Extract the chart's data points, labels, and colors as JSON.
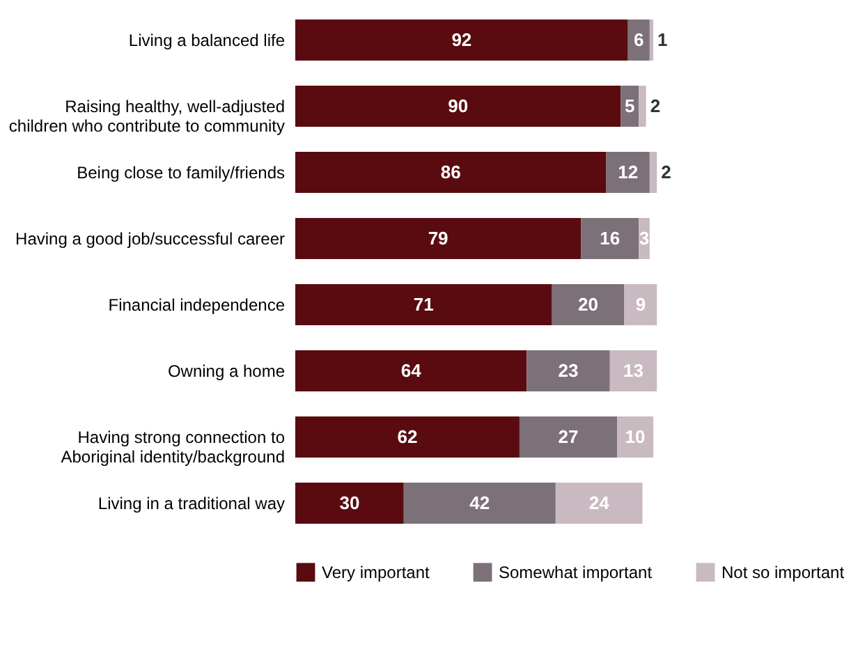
{
  "chart_data": {
    "type": "bar",
    "orientation": "horizontal",
    "stacked": true,
    "data_labels": true,
    "legend": "bottom",
    "tick_labels": "y",
    "categories": [
      "Living a balanced life",
      "Raising healthy, well-adjusted children who contribute to community",
      "Being close to family/friends",
      "Having a good job/successful career",
      "Financial independence",
      "Owning a home",
      "Having strong connection to Aboriginal identity/background",
      "Living in a traditional way"
    ],
    "series": [
      {
        "name": "Very important",
        "color": "#5a0b10",
        "values": [
          92,
          90,
          86,
          79,
          71,
          64,
          62,
          30
        ]
      },
      {
        "name": "Somewhat important",
        "color": "#7c7178",
        "values": [
          6,
          5,
          12,
          16,
          20,
          23,
          27,
          42
        ]
      },
      {
        "name": "Not so important",
        "color": "#c9b9c0",
        "values": [
          1,
          2,
          2,
          3,
          9,
          13,
          10,
          24
        ]
      }
    ]
  }
}
